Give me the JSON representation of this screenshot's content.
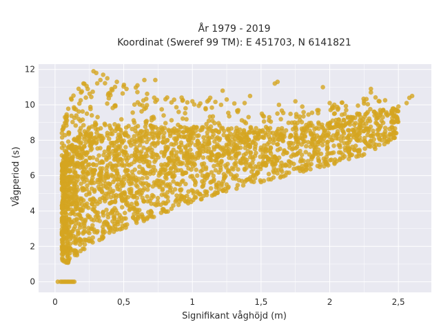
{
  "chart_data": {
    "type": "scatter",
    "title": "År 1979 - 2019",
    "subtitle": "Koordinat (Sweref 99 TM): E 451703, N 6141821",
    "xlabel": "Signifikant våghöjd (m)",
    "ylabel": "Vågperiod (s)",
    "xlim": [
      -0.12,
      2.74
    ],
    "ylim": [
      -0.6,
      12.3
    ],
    "x_ticks": [
      0,
      0.5,
      1,
      1.5,
      2,
      2.5
    ],
    "x_tick_labels": [
      "0",
      "0,5",
      "1",
      "1,5",
      "2",
      "2,5"
    ],
    "y_ticks": [
      0,
      2,
      4,
      6,
      8,
      10,
      12
    ],
    "y_tick_labels": [
      "0",
      "2",
      "4",
      "6",
      "8",
      "10",
      "12"
    ],
    "grid": true,
    "legend": "none",
    "marker_color": "#D4A520",
    "background_color": "#E9E9F1",
    "envelope": {
      "x": [
        0.05,
        0.1,
        0.2,
        0.3,
        0.4,
        0.5,
        0.6,
        0.7,
        0.8,
        0.9,
        1.0,
        1.2,
        1.4,
        1.6,
        1.8,
        2.0,
        2.2,
        2.4,
        2.5
      ],
      "y_low": [
        1.2,
        1.0,
        1.7,
        2.2,
        2.6,
        3.0,
        3.3,
        3.6,
        3.9,
        4.2,
        4.5,
        5.0,
        5.4,
        5.8,
        6.2,
        6.6,
        7.0,
        7.7,
        8.1
      ],
      "y_high": [
        8.8,
        10.4,
        11.2,
        11.6,
        11.4,
        11.2,
        11.0,
        10.9,
        10.7,
        10.5,
        10.4,
        10.2,
        10.0,
        9.8,
        9.8,
        10.0,
        10.4,
        10.6,
        10.5
      ]
    },
    "zero_period_points": {
      "x": [
        0.02,
        0.04,
        0.05,
        0.06,
        0.07,
        0.08,
        0.09,
        0.1,
        0.11,
        0.12,
        0.13,
        0.14
      ],
      "y": [
        0,
        0,
        0,
        0,
        0,
        0,
        0,
        0,
        0,
        0,
        0,
        0
      ]
    },
    "outlier_points": {
      "x": [
        2.6,
        2.58,
        2.56,
        2.5,
        2.45,
        2.3,
        2.3,
        2.25,
        2.2,
        2.0,
        1.95,
        1.62,
        1.6,
        1.42,
        1.38,
        1.33,
        1.13,
        1.0,
        0.95,
        0.9,
        0.73,
        0.65,
        0.6,
        0.28,
        0.3,
        0.33,
        0.35,
        0.38,
        0.12,
        0.05,
        0.52,
        0.45,
        1.22,
        1.25,
        1.63,
        1.75,
        1.8,
        2.02,
        2.12,
        2.42
      ],
      "y": [
        10.5,
        10.4,
        10.1,
        9.9,
        9.6,
        10.9,
        10.7,
        10.2,
        9.5,
        10.1,
        11.0,
        11.3,
        11.2,
        10.5,
        10.1,
        9.6,
        10.4,
        10.2,
        9.8,
        9.6,
        11.4,
        11.4,
        11.1,
        11.9,
        11.8,
        11.4,
        11.7,
        11.5,
        10.3,
        8.4,
        10.9,
        11.3,
        10.8,
        10.3,
        10.0,
        10.2,
        9.9,
        9.9,
        9.7,
        9.4
      ]
    }
  }
}
